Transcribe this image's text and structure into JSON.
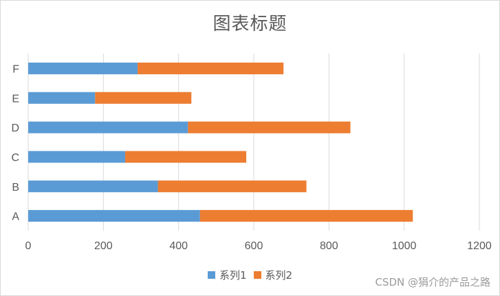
{
  "chart_data": {
    "type": "bar",
    "orientation": "horizontal",
    "stacked": true,
    "title": "图表标题",
    "categories": [
      "A",
      "B",
      "C",
      "D",
      "E",
      "F"
    ],
    "series": [
      {
        "name": "系列1",
        "color": "#5b9bd5",
        "values": [
          457,
          345,
          258,
          425,
          178,
          291
        ]
      },
      {
        "name": "系列2",
        "color": "#ed7d31",
        "values": [
          566,
          395,
          322,
          432,
          256,
          388
        ]
      }
    ],
    "xlim": [
      0,
      1200
    ],
    "x_ticks": [
      "0",
      "200",
      "400",
      "600",
      "800",
      "1000",
      "1200"
    ],
    "grid": true,
    "legend_position": "bottom"
  },
  "watermark": "CSDN @狷介的产品之路"
}
